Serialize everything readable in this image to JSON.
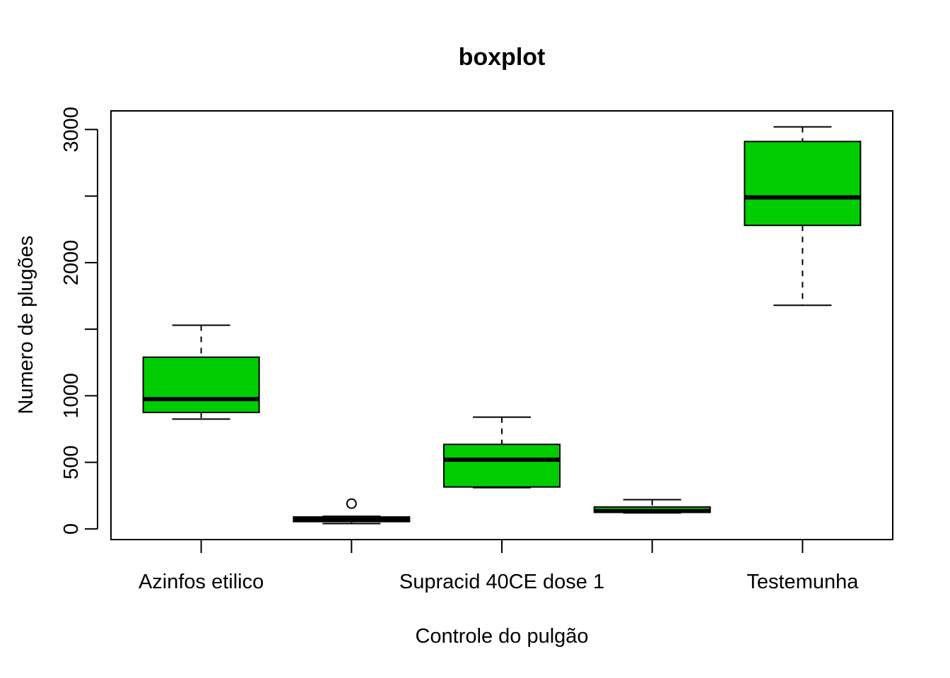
{
  "chart_data": {
    "type": "boxplot",
    "title": "boxplot",
    "xlabel": "Controle do pulgão",
    "ylabel": "Numero de plugões",
    "ylim": [
      -80,
      3140
    ],
    "yticks": [
      0,
      500,
      1000,
      1500,
      2000,
      2500,
      3000
    ],
    "ytick_labels": [
      "0",
      "500",
      "1000",
      "",
      "2000",
      "",
      "3000"
    ],
    "categories": [
      "Azinfos etilico",
      "",
      "Supracid 40CE dose 1",
      "",
      "Testemunha"
    ],
    "boxes": [
      {
        "min": 825,
        "q1": 875,
        "median": 975,
        "q3": 1290,
        "max": 1530,
        "outliers": []
      },
      {
        "min": 40,
        "q1": 55,
        "median": 70,
        "q3": 90,
        "max": 95,
        "outliers": [
          190
        ]
      },
      {
        "min": 310,
        "q1": 315,
        "median": 520,
        "q3": 635,
        "max": 840,
        "outliers": []
      },
      {
        "min": 120,
        "q1": 125,
        "median": 135,
        "q3": 165,
        "max": 220,
        "outliers": []
      },
      {
        "min": 1680,
        "q1": 2280,
        "median": 2490,
        "q3": 2910,
        "max": 3020,
        "outliers": []
      }
    ],
    "box_color": "#00CD00",
    "grid": false,
    "legend": "none"
  }
}
